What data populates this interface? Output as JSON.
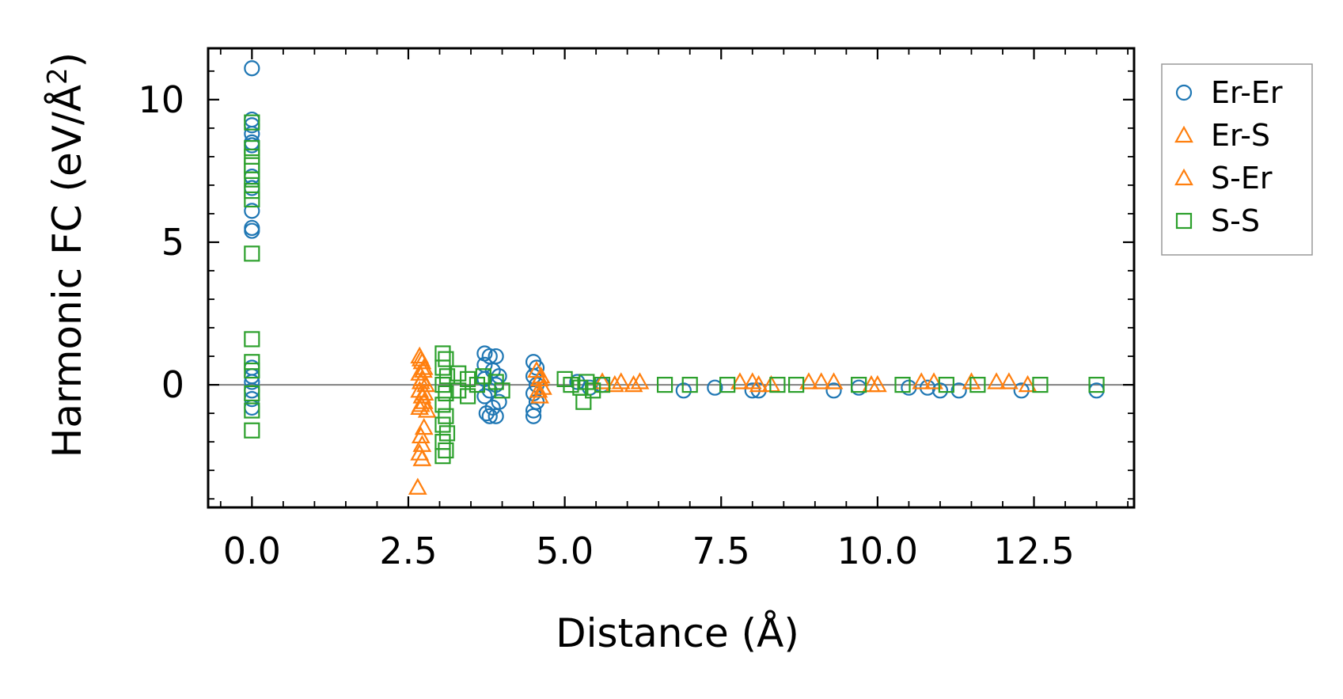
{
  "chart_data": {
    "type": "scatter",
    "title": "",
    "xlabel": "Distance (Å)",
    "ylabel_main": "Harmonic FC (eV/Å",
    "ylabel_sup": "2",
    "ylabel_close": ")",
    "xlim": [
      -0.7,
      14.1
    ],
    "ylim": [
      -4.3,
      11.8
    ],
    "x_ticks": [
      0.0,
      2.5,
      5.0,
      7.5,
      10.0,
      12.5
    ],
    "x_tick_labels": [
      "0.0",
      "2.5",
      "5.0",
      "7.5",
      "10.0",
      "12.5"
    ],
    "y_ticks": [
      0,
      5,
      10
    ],
    "y_tick_labels": [
      "0",
      "5",
      "10"
    ],
    "zero_line": true,
    "legend_position": "outside-right-top",
    "colors": {
      "er_er": "#1f77b4",
      "er_s": "#ff7f0e",
      "s_er": "#ff7f0e",
      "s_s": "#2ca02c",
      "zero_line": "#808080",
      "legend_border": "#999999"
    },
    "series": [
      {
        "name": "Er-Er",
        "marker": "circle",
        "color": "#1f77b4",
        "points": [
          [
            0,
            11.1
          ],
          [
            0,
            9.3
          ],
          [
            0,
            9.1
          ],
          [
            0,
            8.8
          ],
          [
            0,
            8.5
          ],
          [
            0,
            8.4
          ],
          [
            0,
            7.3
          ],
          [
            0,
            6.9
          ],
          [
            0,
            6.1
          ],
          [
            0,
            5.5
          ],
          [
            0,
            5.4
          ],
          [
            0,
            0.6
          ],
          [
            0,
            0.3
          ],
          [
            0,
            0.1
          ],
          [
            0,
            -0.2
          ],
          [
            0,
            -0.5
          ],
          [
            0,
            -0.8
          ],
          [
            3.72,
            1.1
          ],
          [
            3.8,
            1.0
          ],
          [
            3.9,
            1.0
          ],
          [
            3.72,
            0.7
          ],
          [
            3.85,
            0.5
          ],
          [
            3.95,
            0.3
          ],
          [
            3.72,
            0.2
          ],
          [
            3.9,
            0.0
          ],
          [
            3.8,
            -0.2
          ],
          [
            3.72,
            -0.4
          ],
          [
            3.95,
            -0.6
          ],
          [
            3.85,
            -0.8
          ],
          [
            3.75,
            -1.0
          ],
          [
            3.8,
            -1.1
          ],
          [
            3.9,
            -1.1
          ],
          [
            4.5,
            0.8
          ],
          [
            4.55,
            0.6
          ],
          [
            4.5,
            0.3
          ],
          [
            4.55,
            0.0
          ],
          [
            4.5,
            -0.3
          ],
          [
            4.55,
            -0.6
          ],
          [
            4.5,
            -0.9
          ],
          [
            4.5,
            -1.1
          ],
          [
            5.2,
            0.1
          ],
          [
            5.4,
            -0.1
          ],
          [
            5.6,
            0.0
          ],
          [
            6.9,
            -0.2
          ],
          [
            7.4,
            -0.1
          ],
          [
            8.0,
            -0.2
          ],
          [
            8.1,
            -0.2
          ],
          [
            9.3,
            -0.2
          ],
          [
            9.7,
            -0.1
          ],
          [
            10.5,
            -0.1
          ],
          [
            10.8,
            -0.1
          ],
          [
            11.0,
            -0.2
          ],
          [
            11.3,
            -0.2
          ],
          [
            12.3,
            -0.2
          ],
          [
            13.5,
            -0.2
          ]
        ]
      },
      {
        "name": "Er-S",
        "marker": "triangle",
        "color": "#ff7f0e",
        "points": [
          [
            2.68,
            1.0
          ],
          [
            2.72,
            0.8
          ],
          [
            2.75,
            0.6
          ],
          [
            2.68,
            0.4
          ],
          [
            2.72,
            0.2
          ],
          [
            2.78,
            0.0
          ],
          [
            2.68,
            -0.2
          ],
          [
            2.72,
            -0.4
          ],
          [
            2.75,
            -0.6
          ],
          [
            2.68,
            -0.8
          ],
          [
            2.8,
            -0.9
          ],
          [
            2.75,
            -1.5
          ],
          [
            2.7,
            -1.8
          ],
          [
            2.72,
            -2.1
          ],
          [
            2.68,
            -2.4
          ],
          [
            2.72,
            -2.6
          ],
          [
            2.65,
            -3.6
          ],
          [
            4.55,
            0.5
          ],
          [
            4.6,
            0.2
          ],
          [
            4.65,
            -0.1
          ],
          [
            4.6,
            -0.4
          ],
          [
            5.6,
            0.1
          ],
          [
            5.9,
            0.1
          ],
          [
            6.2,
            0.1
          ],
          [
            7.8,
            0.1
          ],
          [
            8.0,
            0.1
          ],
          [
            8.3,
            0.0
          ],
          [
            8.9,
            0.1
          ],
          [
            9.3,
            0.1
          ],
          [
            9.9,
            0.0
          ],
          [
            10.7,
            0.1
          ],
          [
            11.5,
            0.1
          ],
          [
            12.1,
            0.1
          ]
        ]
      },
      {
        "name": "S-Er",
        "marker": "triangle",
        "color": "#ff7f0e",
        "points": [
          [
            2.7,
            0.9
          ],
          [
            2.74,
            0.5
          ],
          [
            2.7,
            0.1
          ],
          [
            2.76,
            -0.3
          ],
          [
            2.7,
            -0.7
          ],
          [
            4.62,
            0.3
          ],
          [
            4.58,
            -0.2
          ],
          [
            5.8,
            0.0
          ],
          [
            6.1,
            0.0
          ],
          [
            8.1,
            0.0
          ],
          [
            9.1,
            0.1
          ],
          [
            10.0,
            0.0
          ],
          [
            10.9,
            0.1
          ],
          [
            11.9,
            0.1
          ],
          [
            12.4,
            0.0
          ]
        ]
      },
      {
        "name": "S-S",
        "marker": "square",
        "color": "#2ca02c",
        "points": [
          [
            0,
            9.2
          ],
          [
            0,
            8.3
          ],
          [
            0,
            8.0
          ],
          [
            0,
            7.7
          ],
          [
            0,
            7.5
          ],
          [
            0,
            7.2
          ],
          [
            0,
            6.8
          ],
          [
            0,
            6.5
          ],
          [
            0,
            4.6
          ],
          [
            0,
            1.6
          ],
          [
            0,
            0.8
          ],
          [
            0,
            0.5
          ],
          [
            0,
            -0.3
          ],
          [
            0,
            -0.9
          ],
          [
            0,
            -1.6
          ],
          [
            3.05,
            1.1
          ],
          [
            3.1,
            0.9
          ],
          [
            3.05,
            0.6
          ],
          [
            3.12,
            0.3
          ],
          [
            3.05,
            0.0
          ],
          [
            3.1,
            -0.3
          ],
          [
            3.05,
            -0.7
          ],
          [
            3.1,
            -1.1
          ],
          [
            3.05,
            -1.4
          ],
          [
            3.12,
            -1.7
          ],
          [
            3.05,
            -2.0
          ],
          [
            3.1,
            -2.3
          ],
          [
            3.05,
            -2.5
          ],
          [
            3.3,
            0.4
          ],
          [
            3.45,
            0.2
          ],
          [
            3.6,
            0.0
          ],
          [
            3.3,
            -0.2
          ],
          [
            3.45,
            -0.4
          ],
          [
            3.7,
            0.3
          ],
          [
            3.9,
            0.1
          ],
          [
            4.0,
            -0.2
          ],
          [
            5.0,
            0.2
          ],
          [
            5.1,
            0.0
          ],
          [
            5.25,
            -0.1
          ],
          [
            5.35,
            0.1
          ],
          [
            5.3,
            -0.6
          ],
          [
            5.45,
            -0.2
          ],
          [
            5.6,
            0.0
          ],
          [
            6.6,
            0.0
          ],
          [
            7.0,
            0.0
          ],
          [
            7.6,
            0.0
          ],
          [
            8.4,
            0.0
          ],
          [
            8.7,
            0.0
          ],
          [
            9.7,
            0.0
          ],
          [
            10.4,
            0.0
          ],
          [
            11.1,
            0.0
          ],
          [
            11.6,
            0.0
          ],
          [
            12.6,
            0.0
          ],
          [
            13.5,
            0.0
          ]
        ]
      }
    ]
  }
}
